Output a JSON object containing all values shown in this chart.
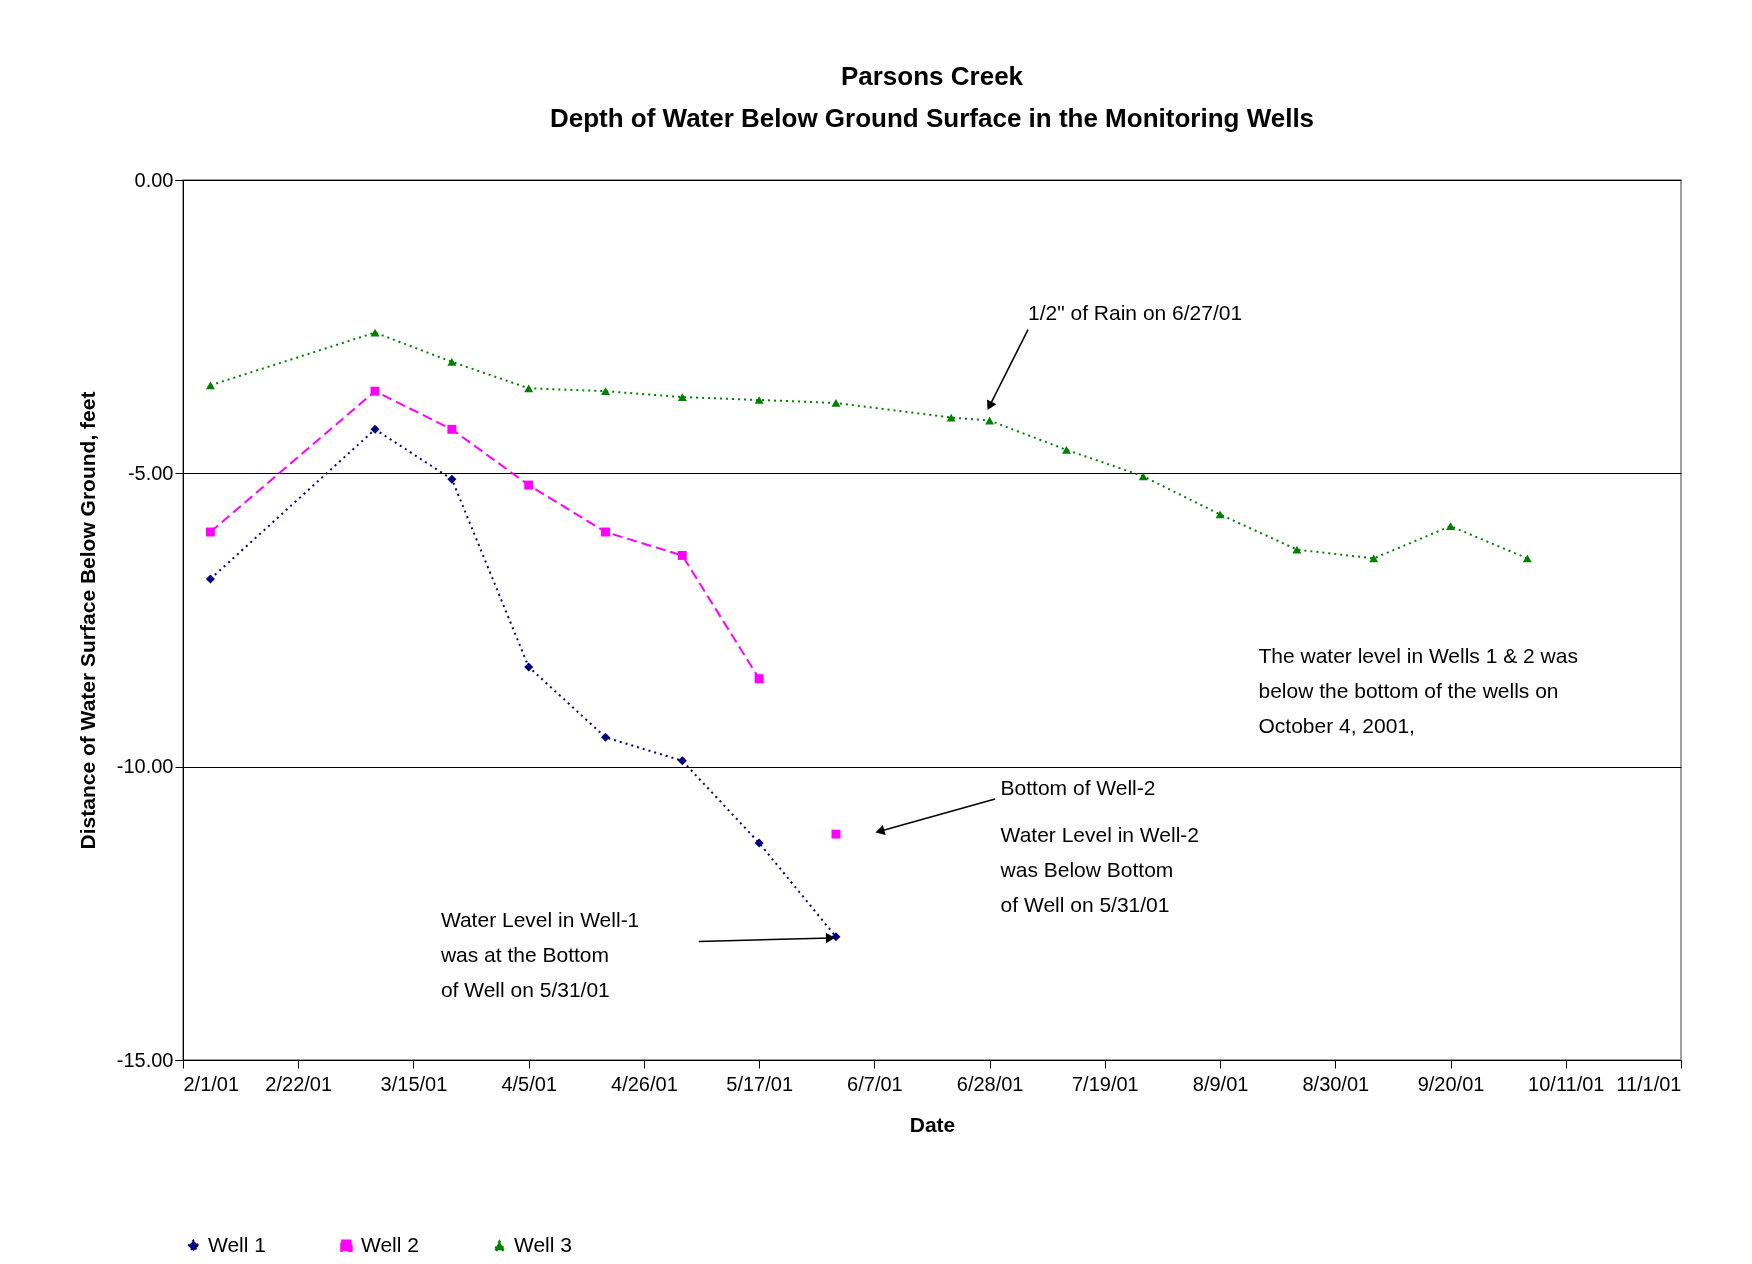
{
  "chart_data": {
    "type": "line",
    "title": "Parsons Creek",
    "subtitle": "Depth of Water Below Ground Surface in the Monitoring Wells",
    "xlabel": "Date",
    "ylabel": "Distance of Water Surface Below Ground, feet",
    "xlim": [
      "2001-02-01",
      "2001-11-01"
    ],
    "xticks": [
      {
        "value": "2001-02-01",
        "label": "2/1/01"
      },
      {
        "value": "2001-02-22",
        "label": "2/22/01"
      },
      {
        "value": "2001-03-15",
        "label": "3/15/01"
      },
      {
        "value": "2001-04-05",
        "label": "4/5/01"
      },
      {
        "value": "2001-04-26",
        "label": "4/26/01"
      },
      {
        "value": "2001-05-17",
        "label": "5/17/01"
      },
      {
        "value": "2001-06-07",
        "label": "6/7/01"
      },
      {
        "value": "2001-06-28",
        "label": "6/28/01"
      },
      {
        "value": "2001-07-19",
        "label": "7/19/01"
      },
      {
        "value": "2001-08-09",
        "label": "8/9/01"
      },
      {
        "value": "2001-08-30",
        "label": "8/30/01"
      },
      {
        "value": "2001-09-20",
        "label": "9/20/01"
      },
      {
        "value": "2001-10-11",
        "label": "10/11/01"
      },
      {
        "value": "2001-11-01",
        "label": "11/1/01"
      }
    ],
    "ylim": [
      -15,
      0
    ],
    "yticks": [
      {
        "value": -15,
        "label": "-15.00"
      },
      {
        "value": -10,
        "label": "-10.00"
      },
      {
        "value": -5,
        "label": "-5.00"
      },
      {
        "value": 0,
        "label": "0.00"
      }
    ],
    "grid": "y",
    "legend": "bottom",
    "series": [
      {
        "name": "Well 1",
        "color": "#000080",
        "marker": "diamond",
        "line_style": "dotted",
        "x": [
          "2001-02-06",
          "2001-03-08",
          "2001-03-22",
          "2001-04-05",
          "2001-04-19",
          "2001-05-03",
          "2001-05-17",
          "2001-05-31"
        ],
        "values": [
          -6.8,
          -4.25,
          -5.1,
          -8.3,
          -9.5,
          -9.9,
          -11.3,
          -12.9
        ]
      },
      {
        "name": "Well 2",
        "color": "#ff00ff",
        "marker": "square",
        "line_style": "dashed",
        "x": [
          "2001-02-06",
          "2001-03-08",
          "2001-03-22",
          "2001-04-05",
          "2001-04-19",
          "2001-05-03",
          "2001-05-17"
        ],
        "values": [
          -6.0,
          -3.6,
          -4.25,
          -5.2,
          -6.0,
          -6.4,
          -8.5
        ]
      },
      {
        "name": "Well 3",
        "color": "#008000",
        "marker": "triangle",
        "line_style": "dotted",
        "x": [
          "2001-02-06",
          "2001-03-08",
          "2001-03-22",
          "2001-04-05",
          "2001-04-19",
          "2001-05-03",
          "2001-05-17",
          "2001-05-31",
          "2001-06-21",
          "2001-06-28",
          "2001-07-12",
          "2001-07-26",
          "2001-08-09",
          "2001-08-23",
          "2001-09-06",
          "2001-09-20",
          "2001-10-04"
        ],
        "values": [
          -3.5,
          -2.6,
          -3.1,
          -3.55,
          -3.6,
          -3.7,
          -3.75,
          -3.8,
          -4.05,
          -4.1,
          -4.6,
          -5.05,
          -5.7,
          -6.3,
          -6.45,
          -5.9,
          -6.45
        ]
      },
      {
        "type": "scatter",
        "color": "#ff00ff",
        "marker": "square",
        "x": [
          "2001-05-31"
        ],
        "values": [
          -11.15
        ]
      }
    ],
    "annotations": [
      "1/2\" of Rain on 6/27/01",
      "The water level in Wells 1 & 2 was below the bottom of the wells on October 4, 2001,",
      "Bottom of Well-2",
      "Water Level in Well-2 was Below Bottom of Well on 5/31/01",
      "Water Level in Well-1 was at the Bottom of Well on 5/31/01"
    ]
  }
}
